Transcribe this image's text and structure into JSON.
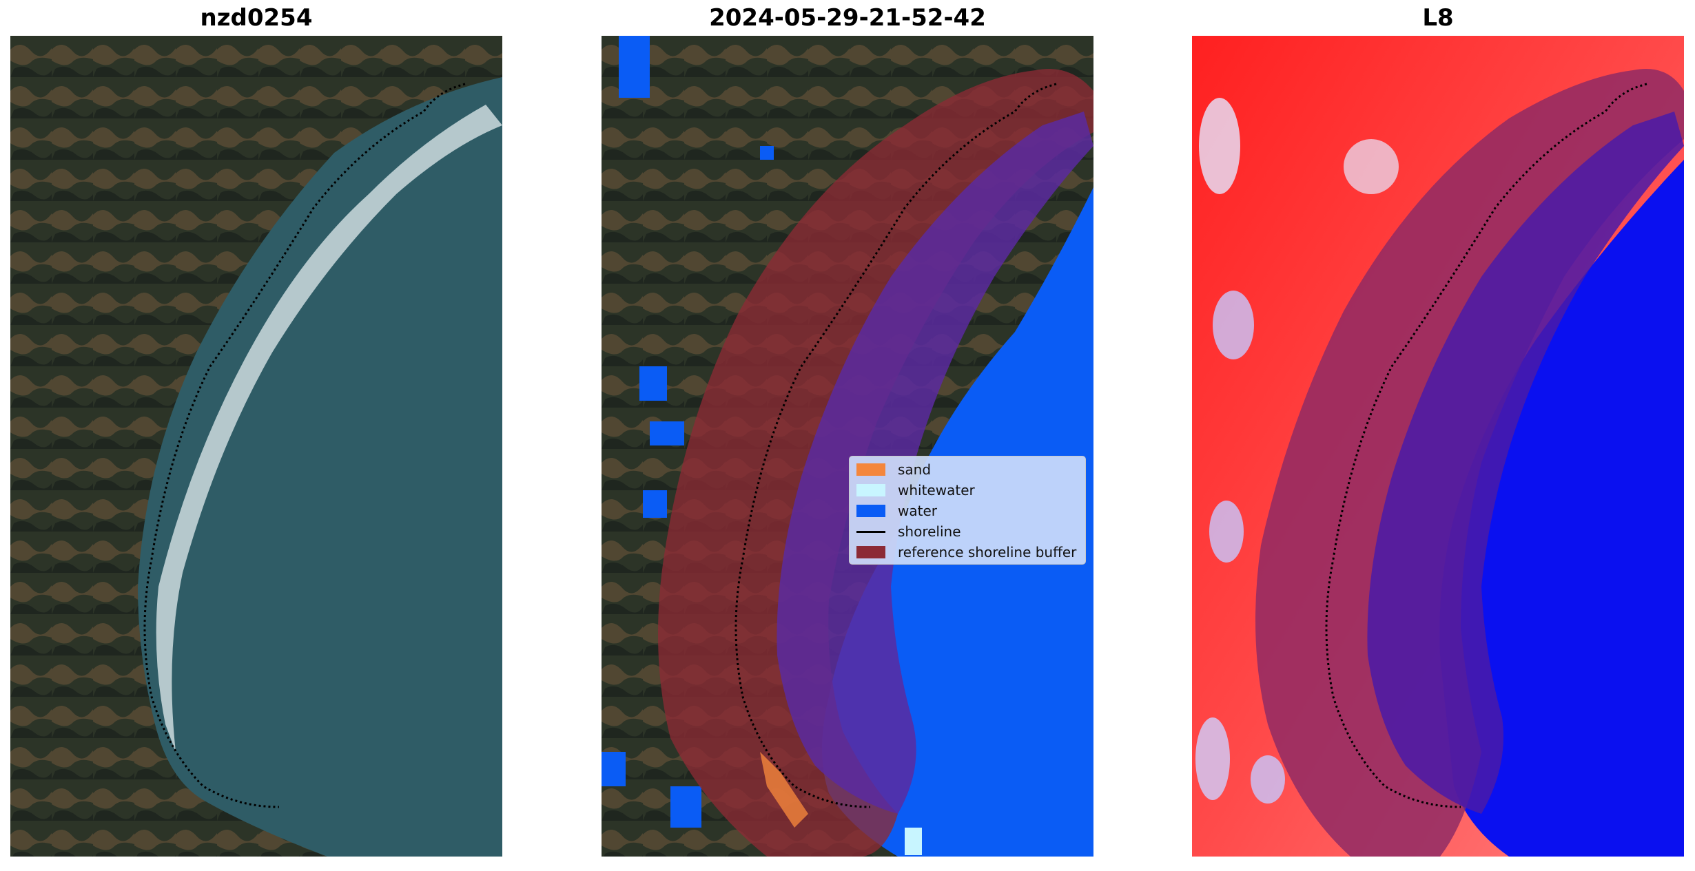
{
  "figure": {
    "panels": [
      {
        "title": "nzd0254",
        "kind": "rgb-image"
      },
      {
        "title": "2024-05-29-21-52-42",
        "kind": "classified-image"
      },
      {
        "title": "L8",
        "kind": "index-image"
      }
    ]
  },
  "legend": {
    "items": [
      {
        "label": "sand",
        "color": "#f4863c",
        "type": "patch"
      },
      {
        "label": "whitewater",
        "color": "#c8f5ff",
        "type": "patch"
      },
      {
        "label": "water",
        "color": "#0a5cf5",
        "type": "patch"
      },
      {
        "label": "shoreline",
        "color": "#000000",
        "type": "line"
      },
      {
        "label": "reference shoreline buffer",
        "color": "#8c2a35",
        "type": "patch"
      }
    ]
  },
  "colors": {
    "land_dark": "#2b3328",
    "land_brown": "#6e5a3e",
    "sea": "#2f5d66",
    "classified_water": "#0a5cf5",
    "buffer": "#8c2a35",
    "index_red": "#ff1a1a",
    "index_blue": "#0a10f0"
  }
}
